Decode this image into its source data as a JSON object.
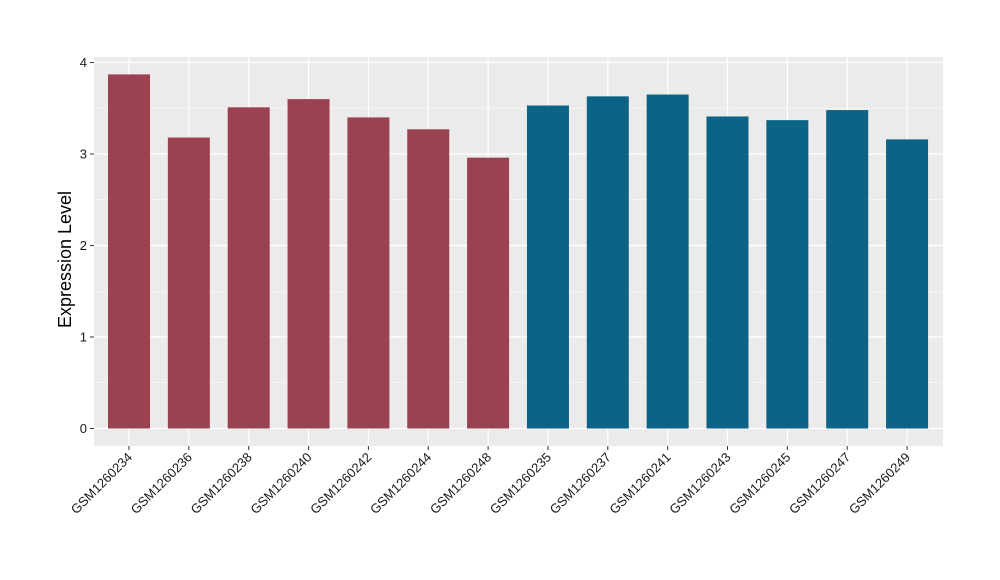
{
  "chart_data": {
    "type": "bar",
    "title": "",
    "xlabel": "",
    "ylabel": "Expression Level",
    "ylim": [
      0,
      4
    ],
    "y_ticks": [
      0,
      1,
      2,
      3,
      4
    ],
    "y_tick_labels": [
      "0",
      "1",
      "2",
      "3",
      "4"
    ],
    "grid": true,
    "legend": "none",
    "categories": [
      "GSM1260234",
      "GSM1260236",
      "GSM1260238",
      "GSM1260240",
      "GSM1260242",
      "GSM1260244",
      "GSM1260248",
      "GSM1260235",
      "GSM1260237",
      "GSM1260241",
      "GSM1260243",
      "GSM1260245",
      "GSM1260247",
      "GSM1260249"
    ],
    "values": [
      3.87,
      3.18,
      3.51,
      3.6,
      3.4,
      3.27,
      2.96,
      3.53,
      3.63,
      3.65,
      3.41,
      3.37,
      3.48,
      3.16
    ],
    "bar_colors": [
      "#9b4250",
      "#9b4250",
      "#9b4250",
      "#9b4250",
      "#9b4250",
      "#9b4250",
      "#9b4250",
      "#0b6485",
      "#0b6485",
      "#0b6485",
      "#0b6485",
      "#0b6485",
      "#0b6485",
      "#0b6485"
    ],
    "panel_background": "#ebebeb",
    "grid_color": "#ffffff"
  }
}
